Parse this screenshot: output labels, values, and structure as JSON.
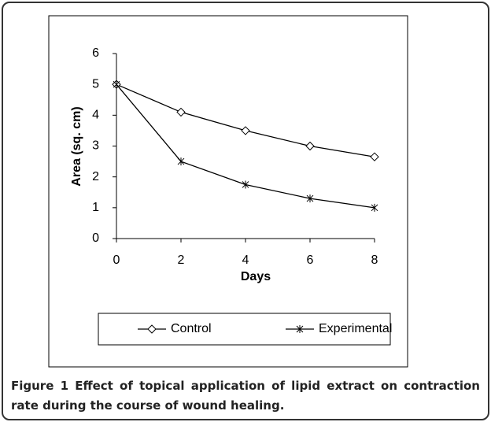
{
  "chart_data": {
    "type": "line",
    "xlabel": "Days",
    "ylabel": "Area (sq. cm)",
    "x": [
      0,
      2,
      4,
      6,
      8
    ],
    "series": [
      {
        "name": "Control",
        "color": "#000000",
        "marker": "diamond",
        "values": [
          5,
          4.1,
          3.5,
          3,
          2.65
        ]
      },
      {
        "name": "Experimental",
        "color": "#000000",
        "marker": "asterisk",
        "values": [
          5,
          2.5,
          1.75,
          1.3,
          1
        ]
      }
    ],
    "xlim": [
      0,
      8
    ],
    "xticks": [
      0,
      2,
      4,
      6,
      8
    ],
    "ylim": [
      0,
      6
    ],
    "yticks": [
      0,
      1,
      2,
      3,
      4,
      5,
      6
    ],
    "grid": false,
    "legend": "bottom"
  },
  "caption": {
    "label": "Figure 1",
    "text": "Effect of topical application of lipid extract on contraction rate during the course of wound healing."
  }
}
